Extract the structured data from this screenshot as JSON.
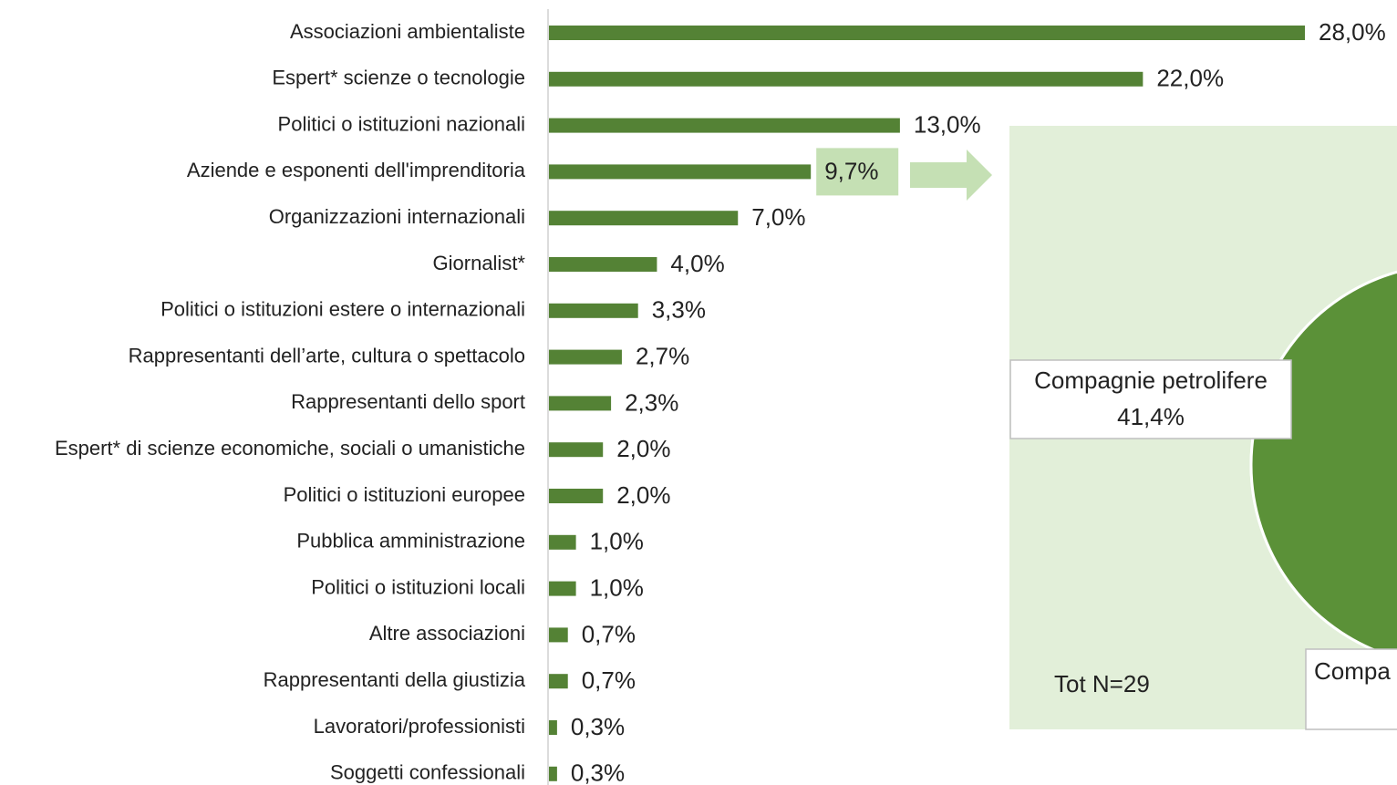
{
  "chart_data": [
    {
      "type": "bar",
      "orientation": "horizontal",
      "categories": [
        "Associazioni ambientaliste",
        "Espert* scienze o tecnologie",
        "Politici o istituzioni nazionali",
        "Aziende e esponenti dell'imprenditoria",
        "Organizzazioni internazionali",
        "Giornalist*",
        "Politici o istituzioni estere o internazionali",
        "Rappresentanti dell’arte, cultura o spettacolo",
        "Rappresentanti dello sport",
        "Espert* di scienze economiche, sociali o umanistiche",
        "Politici o istituzioni europee",
        "Pubblica amministrazione",
        "Politici o istituzioni locali",
        "Altre associazioni",
        "Rappresentanti della giustizia",
        "Lavoratori/professionisti",
        "Soggetti confessionali"
      ],
      "values": [
        28.0,
        22.0,
        13.0,
        9.7,
        7.0,
        4.0,
        3.3,
        2.7,
        2.3,
        2.0,
        2.0,
        1.0,
        1.0,
        0.7,
        0.7,
        0.3,
        0.3
      ],
      "value_labels": [
        "28,0%",
        "22,0%",
        "13,0%",
        "9,7%",
        "7,0%",
        "4,0%",
        "3,3%",
        "2,7%",
        "2,3%",
        "2,0%",
        "2,0%",
        "1,0%",
        "1,0%",
        "0,7%",
        "0,7%",
        "0,3%",
        "0,3%"
      ],
      "color": "#548235",
      "highlight_index": 3,
      "highlight_color": "#c5e0b4",
      "xlim": [
        0,
        28
      ]
    },
    {
      "type": "pie",
      "categories": [
        "Compagnie petrolifere"
      ],
      "values": [
        41.4
      ],
      "value_labels": [
        "41,4%"
      ],
      "color": "#5b9138",
      "annotations": [
        "Tot N=29",
        "Compa"
      ]
    }
  ]
}
